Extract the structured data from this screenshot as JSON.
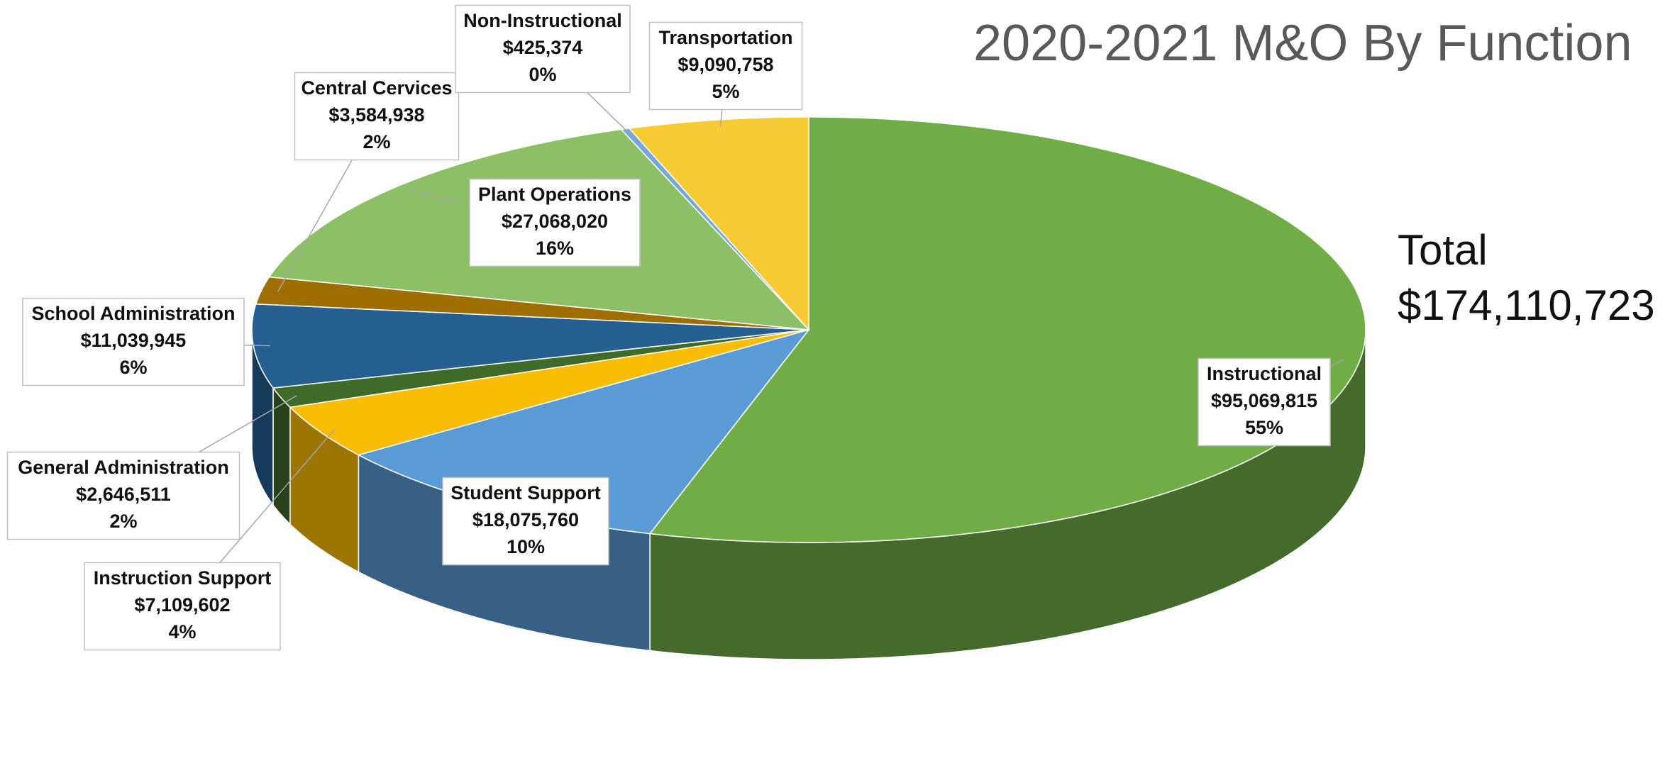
{
  "chart_data": {
    "type": "pie",
    "title": "2020-2021 M&O By Function",
    "annotations": [
      "Total",
      "$174,110,723"
    ],
    "categories": [
      "Instructional",
      "Student Support",
      "Instruction Support",
      "General Administration",
      "School Administration",
      "Central Cervices",
      "Plant Operations",
      "Non-Instructional",
      "Transportation"
    ],
    "values": [
      95069815,
      18075760,
      7109602,
      2646511,
      11039945,
      3584938,
      27068020,
      425374,
      9090758
    ],
    "value_labels": [
      "$95,069,815",
      "$18,075,760",
      "$7,109,602",
      "$2,646,511",
      "$11,039,945",
      "$3,584,938",
      "$27,068,020",
      "$425,374",
      "$9,090,758"
    ],
    "percent_labels": [
      "55%",
      "10%",
      "4%",
      "2%",
      "6%",
      "2%",
      "16%",
      "0%",
      "5%"
    ],
    "colors": [
      "#70ad47",
      "#5b9bd5",
      "#fbbc04",
      "#3f6b2a",
      "#255e91",
      "#9e6f00",
      "#8cbf66",
      "#74a8d8",
      "#f8ca33"
    ]
  }
}
